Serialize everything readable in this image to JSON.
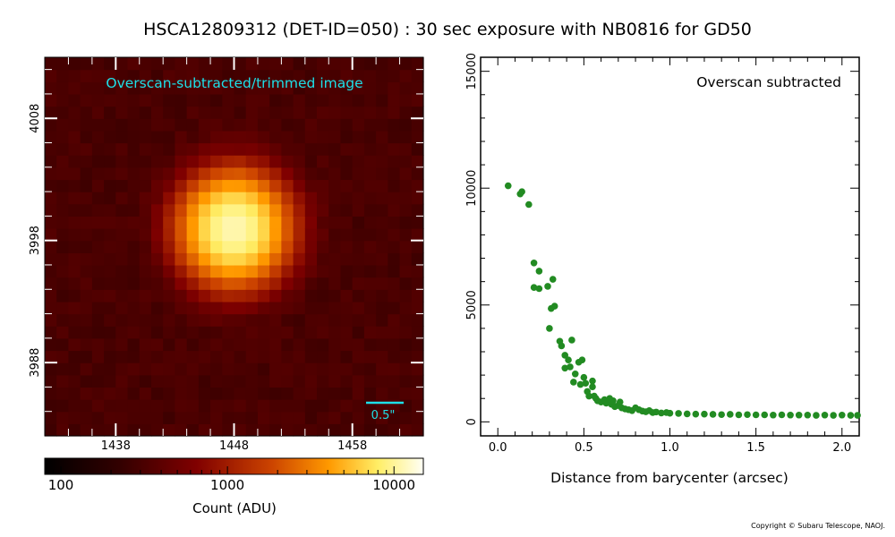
{
  "title": "HSCA12809312 (DET-ID=050) :  30 sec exposure with NB0816 for GD50",
  "copyright": "Copyright © Subaru Telescope, NAOJ.",
  "colors": {
    "point": "#228b22",
    "annotation": "#1ee0e8",
    "frame": "#000000"
  },
  "chart_data": [
    {
      "type": "heatmap",
      "annotation": "Overscan-subtracted/trimmed image",
      "x_ticks": [
        "1438",
        "1448",
        "1458"
      ],
      "y_ticks": [
        "4008",
        "3998",
        "3988"
      ],
      "x_range": [
        1432,
        1464
      ],
      "y_range": [
        3982,
        4013
      ],
      "x_tick_values": [
        1438,
        1448,
        1458
      ],
      "y_tick_values": [
        4008,
        3998,
        3988
      ],
      "scale_bar_label": "0.5\"",
      "source": {
        "center_x": 1448,
        "center_y": 3999,
        "peak_counts": 11000,
        "background_counts": 310,
        "sigma_pix": 2.4
      },
      "colorbar": {
        "label": "Count (ADU)",
        "scale": "log",
        "range": [
          80,
          15000
        ],
        "tick_labels": [
          "100",
          "1000",
          "10000"
        ],
        "tick_values": [
          100,
          1000,
          10000
        ],
        "colormap": "afmhot"
      }
    },
    {
      "type": "scatter",
      "annotation": "Overscan subtracted",
      "xlabel": "Distance from barycenter (arcsec)",
      "ylabel": "",
      "xlim": [
        -0.1,
        2.1
      ],
      "ylim": [
        -600,
        15600
      ],
      "x_ticks": [
        "0.0",
        "0.5",
        "1.0",
        "1.5",
        "2.0"
      ],
      "x_tick_values": [
        0,
        0.5,
        1.0,
        1.5,
        2.0
      ],
      "y_ticks": [
        "0",
        "5000",
        "10000",
        "15000"
      ],
      "y_tick_values": [
        0,
        5000,
        10000,
        15000
      ],
      "points": [
        [
          0.06,
          10100
        ],
        [
          0.13,
          9750
        ],
        [
          0.14,
          9850
        ],
        [
          0.18,
          9300
        ],
        [
          0.21,
          6800
        ],
        [
          0.21,
          5750
        ],
        [
          0.24,
          6450
        ],
        [
          0.24,
          5700
        ],
        [
          0.29,
          5800
        ],
        [
          0.3,
          4000
        ],
        [
          0.31,
          4850
        ],
        [
          0.32,
          6100
        ],
        [
          0.33,
          4950
        ],
        [
          0.36,
          3450
        ],
        [
          0.37,
          3250
        ],
        [
          0.39,
          2850
        ],
        [
          0.39,
          2300
        ],
        [
          0.41,
          2650
        ],
        [
          0.42,
          2350
        ],
        [
          0.43,
          3500
        ],
        [
          0.44,
          1700
        ],
        [
          0.45,
          2050
        ],
        [
          0.47,
          2550
        ],
        [
          0.48,
          1600
        ],
        [
          0.49,
          2650
        ],
        [
          0.5,
          1900
        ],
        [
          0.51,
          1650
        ],
        [
          0.52,
          1300
        ],
        [
          0.53,
          1100
        ],
        [
          0.55,
          1750
        ],
        [
          0.55,
          1500
        ],
        [
          0.56,
          1100
        ],
        [
          0.57,
          1000
        ],
        [
          0.58,
          900
        ],
        [
          0.6,
          850
        ],
        [
          0.62,
          950
        ],
        [
          0.63,
          800
        ],
        [
          0.65,
          1000
        ],
        [
          0.66,
          750
        ],
        [
          0.67,
          900
        ],
        [
          0.68,
          650
        ],
        [
          0.7,
          700
        ],
        [
          0.71,
          850
        ],
        [
          0.72,
          600
        ],
        [
          0.74,
          550
        ],
        [
          0.76,
          520
        ],
        [
          0.78,
          480
        ],
        [
          0.8,
          600
        ],
        [
          0.82,
          520
        ],
        [
          0.84,
          460
        ],
        [
          0.86,
          430
        ],
        [
          0.88,
          480
        ],
        [
          0.9,
          400
        ],
        [
          0.92,
          420
        ],
        [
          0.95,
          380
        ],
        [
          0.98,
          400
        ],
        [
          1.0,
          370
        ],
        [
          1.05,
          360
        ],
        [
          1.1,
          340
        ],
        [
          1.15,
          330
        ],
        [
          1.2,
          330
        ],
        [
          1.25,
          320
        ],
        [
          1.3,
          310
        ],
        [
          1.35,
          320
        ],
        [
          1.4,
          300
        ],
        [
          1.45,
          310
        ],
        [
          1.5,
          300
        ],
        [
          1.55,
          300
        ],
        [
          1.6,
          290
        ],
        [
          1.65,
          300
        ],
        [
          1.7,
          290
        ],
        [
          1.75,
          290
        ],
        [
          1.8,
          290
        ],
        [
          1.85,
          280
        ],
        [
          1.9,
          290
        ],
        [
          1.95,
          280
        ],
        [
          2.0,
          290
        ],
        [
          2.05,
          280
        ],
        [
          2.09,
          280
        ]
      ]
    }
  ]
}
